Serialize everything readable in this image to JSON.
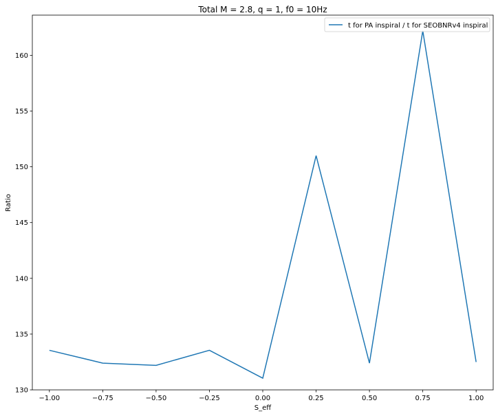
{
  "chart_data": {
    "type": "line",
    "title": "Total M = 2.8, q = 1, f0 = 10Hz",
    "xlabel": "S_eff",
    "ylabel": "Ratio",
    "xlim": [
      -1.08,
      1.08
    ],
    "ylim": [
      130.0,
      163.6
    ],
    "xticks": [
      -1.0,
      -0.75,
      -0.5,
      -0.25,
      0.0,
      0.25,
      0.5,
      0.75,
      1.0
    ],
    "xtick_labels": [
      "−1.00",
      "−0.75",
      "−0.50",
      "−0.25",
      "0.00",
      "0.25",
      "0.50",
      "0.75",
      "1.00"
    ],
    "yticks": [
      130,
      135,
      140,
      145,
      150,
      155,
      160
    ],
    "ytick_labels": [
      "130",
      "135",
      "140",
      "145",
      "150",
      "155",
      "160"
    ],
    "grid": false,
    "legend_position": "upper right",
    "series": [
      {
        "name": "t for PA inspiral / t for SEOBNRv4 inspiral",
        "color": "#1f77b4",
        "x": [
          -1.0,
          -0.75,
          -0.5,
          -0.25,
          0.0,
          0.25,
          0.5,
          0.75,
          1.0
        ],
        "y": [
          133.55,
          132.4,
          132.2,
          133.55,
          131.05,
          151.0,
          132.4,
          162.2,
          132.5
        ]
      }
    ]
  }
}
